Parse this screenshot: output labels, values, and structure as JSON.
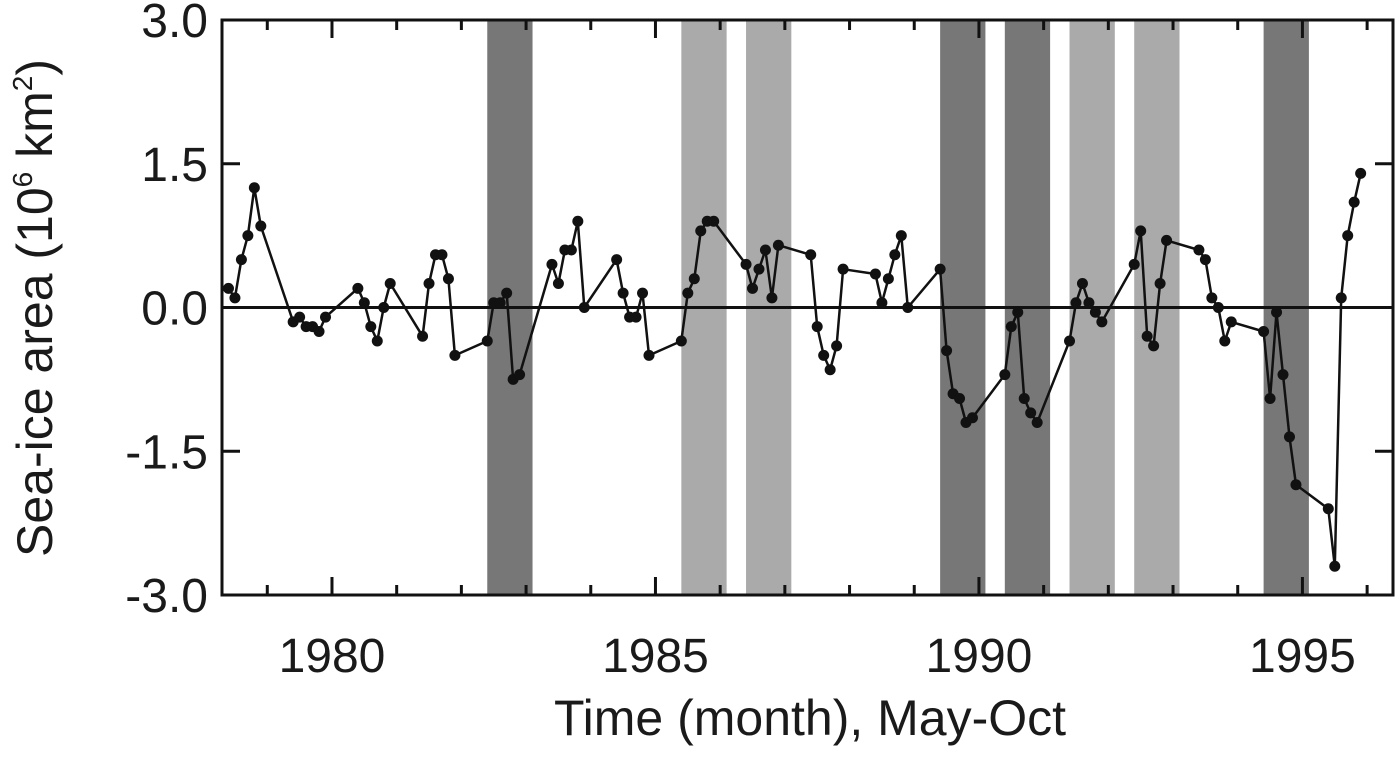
{
  "chart_data": {
    "type": "line",
    "xlabel": "Time (month), May-Oct",
    "ylabel_main": "Sea-ice area (10",
    "ylabel_sup1": "6",
    "ylabel_mid": " km",
    "ylabel_sup2": "2",
    "ylabel_end": ")",
    "xlim": [
      1978.3,
      1996.4
    ],
    "ylim": [
      -3.0,
      3.0
    ],
    "yticks": [
      3.0,
      1.5,
      0.0,
      -1.5,
      -3.0
    ],
    "ytick_labels": [
      "3.0",
      "1.5",
      "0.0",
      "-1.5",
      "-3.0"
    ],
    "xticks": [
      1980,
      1985,
      1990,
      1995
    ],
    "xtick_labels": [
      "1980",
      "1985",
      "1990",
      "1995"
    ],
    "zero_line": 0.0,
    "grid": false,
    "line_color": "#111111",
    "shaded_periods": [
      {
        "start": 1982.4,
        "end": 1983.1,
        "shade": "dark",
        "color": "#777777"
      },
      {
        "start": 1985.4,
        "end": 1986.1,
        "shade": "light",
        "color": "#aaaaaa"
      },
      {
        "start": 1986.4,
        "end": 1987.1,
        "shade": "light",
        "color": "#aaaaaa"
      },
      {
        "start": 1989.4,
        "end": 1990.1,
        "shade": "dark",
        "color": "#777777"
      },
      {
        "start": 1990.4,
        "end": 1991.1,
        "shade": "dark",
        "color": "#777777"
      },
      {
        "start": 1991.4,
        "end": 1992.1,
        "shade": "light",
        "color": "#aaaaaa"
      },
      {
        "start": 1992.4,
        "end": 1993.1,
        "shade": "light",
        "color": "#aaaaaa"
      },
      {
        "start": 1994.4,
        "end": 1995.1,
        "shade": "dark",
        "color": "#777777"
      }
    ],
    "series": [
      {
        "x": [
          1978.4,
          1978.5,
          1978.6,
          1978.7,
          1978.8,
          1978.9,
          1979.4,
          1979.5,
          1979.6,
          1979.7,
          1979.8,
          1979.9,
          1980.4,
          1980.5,
          1980.6,
          1980.7,
          1980.8,
          1980.9,
          1981.4,
          1981.5,
          1981.6,
          1981.7,
          1981.8,
          1981.9,
          1982.4,
          1982.5,
          1982.6,
          1982.7,
          1982.8,
          1982.9,
          1983.4,
          1983.5,
          1983.6,
          1983.7,
          1983.8,
          1983.9,
          1984.4,
          1984.5,
          1984.6,
          1984.7,
          1984.8,
          1984.9,
          1985.4,
          1985.5,
          1985.6,
          1985.7,
          1985.8,
          1985.9,
          1986.4,
          1986.5,
          1986.6,
          1986.7,
          1986.8,
          1986.9,
          1987.4,
          1987.5,
          1987.6,
          1987.7,
          1987.8,
          1987.9,
          1988.4,
          1988.5,
          1988.6,
          1988.7,
          1988.8,
          1988.9,
          1989.4,
          1989.5,
          1989.6,
          1989.7,
          1989.8,
          1989.9,
          1990.4,
          1990.5,
          1990.6,
          1990.7,
          1990.8,
          1990.9,
          1991.4,
          1991.5,
          1991.6,
          1991.7,
          1991.8,
          1991.9,
          1992.4,
          1992.5,
          1992.6,
          1992.7,
          1992.8,
          1992.9,
          1993.4,
          1993.5,
          1993.6,
          1993.7,
          1993.8,
          1993.9,
          1994.4,
          1994.5,
          1994.6,
          1994.7,
          1994.8,
          1994.9,
          1995.4,
          1995.5,
          1995.6,
          1995.7,
          1995.8,
          1995.9
        ],
        "y": [
          0.2,
          0.1,
          0.5,
          0.75,
          1.25,
          0.85,
          -0.15,
          -0.1,
          -0.2,
          -0.2,
          -0.25,
          -0.1,
          0.2,
          0.05,
          -0.2,
          -0.35,
          0.0,
          0.25,
          -0.3,
          0.25,
          0.55,
          0.55,
          0.3,
          -0.5,
          -0.35,
          0.05,
          0.05,
          0.15,
          -0.75,
          -0.7,
          0.45,
          0.25,
          0.6,
          0.6,
          0.9,
          0.0,
          0.5,
          0.15,
          -0.1,
          -0.1,
          0.15,
          -0.5,
          -0.35,
          0.15,
          0.3,
          0.8,
          0.9,
          0.9,
          0.45,
          0.2,
          0.4,
          0.6,
          0.1,
          0.65,
          0.55,
          -0.2,
          -0.5,
          -0.65,
          -0.4,
          0.4,
          0.35,
          0.05,
          0.3,
          0.55,
          0.75,
          0.0,
          0.4,
          -0.45,
          -0.9,
          -0.95,
          -1.2,
          -1.15,
          -0.7,
          -0.2,
          -0.05,
          -0.95,
          -1.1,
          -1.2,
          -0.35,
          0.05,
          0.25,
          0.05,
          -0.05,
          -0.15,
          0.45,
          0.8,
          -0.3,
          -0.4,
          0.25,
          0.7,
          0.6,
          0.5,
          0.1,
          0.0,
          -0.35,
          -0.15,
          -0.25,
          -0.95,
          -0.05,
          -0.7,
          -1.35,
          -1.85,
          -2.1,
          -2.7,
          0.1,
          0.75,
          1.1,
          1.4
        ]
      }
    ]
  }
}
